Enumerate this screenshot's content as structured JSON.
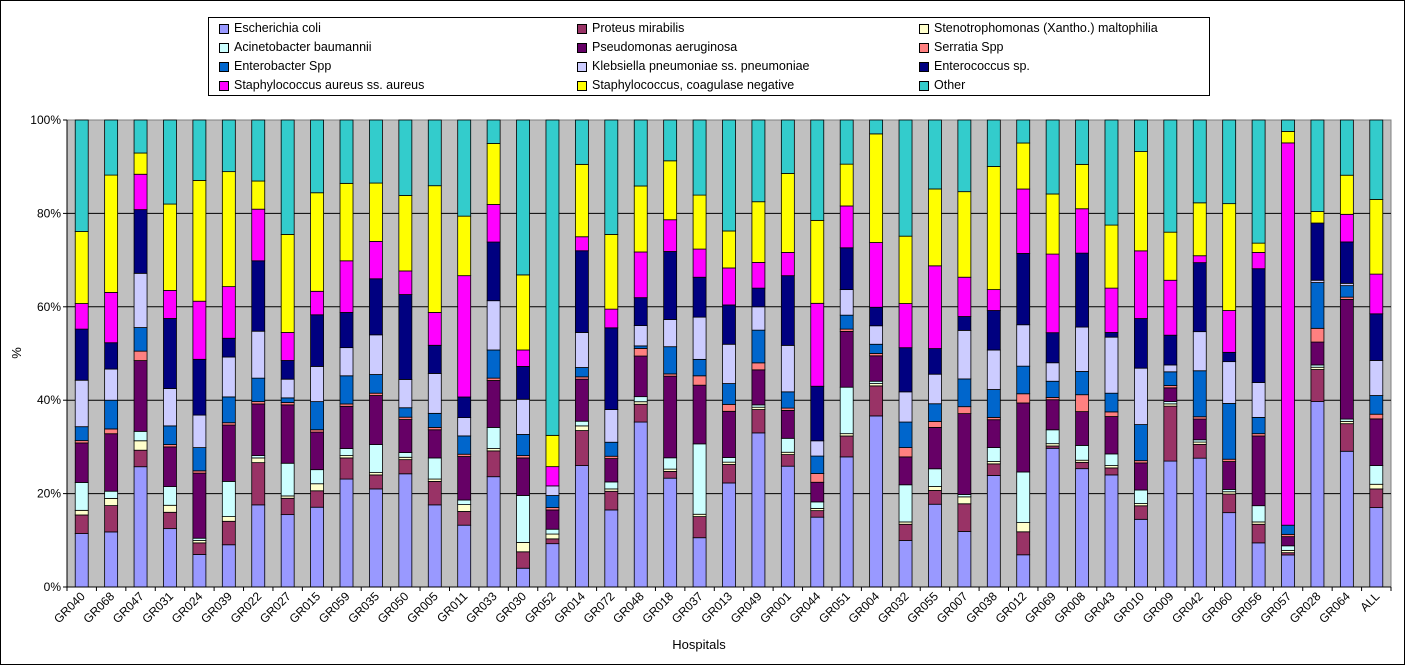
{
  "chart_data": {
    "type": "bar",
    "stacked": "percent",
    "xlabel": "Hospitals",
    "ylabel": "%",
    "ylim": [
      0,
      100
    ],
    "yticks": [
      "0%",
      "20%",
      "40%",
      "60%",
      "80%",
      "100%"
    ],
    "grid": true,
    "legend_position": "top",
    "categories": [
      "GR040",
      "GR068",
      "GR047",
      "GR031",
      "GR024",
      "GR039",
      "GR022",
      "GR027",
      "GR015",
      "GR059",
      "GR035",
      "GR050",
      "GR005",
      "GR011",
      "GR033",
      "GR030",
      "GR052",
      "GR014",
      "GR072",
      "GR048",
      "GR018",
      "GR037",
      "GR013",
      "GR049",
      "GR001",
      "GR044",
      "GR051",
      "GR004",
      "GR032",
      "GR055",
      "GR007",
      "GR038",
      "GR012",
      "GR069",
      "GR008",
      "GR043",
      "GR010",
      "GR009",
      "GR042",
      "GR060",
      "GR056",
      "GR057",
      "GR028",
      "GR064",
      "ALL"
    ],
    "series": [
      {
        "name": "Escherichia coli",
        "color": "#9999ff",
        "values": [
          11.5,
          11.5,
          25.5,
          12.5,
          7.0,
          9.0,
          17.5,
          15.5,
          17.0,
          23.0,
          21.0,
          24.0,
          17.5,
          13.5,
          23.5,
          4.0,
          9.0,
          26.0,
          16.5,
          32.5,
          24.0,
          10.5,
          22.5,
          33.0,
          26.0,
          16.0,
          28.0,
          37.0,
          10.0,
          21.0,
          12.0,
          24.0,
          7.0,
          30.0,
          28.0,
          24.0,
          15.0,
          27.5,
          28.0,
          16.0,
          9.5,
          7.0,
          40.5,
          29.5,
          17.0
        ]
      },
      {
        "name": "Proteus mirabilis",
        "color": "#993366",
        "values": [
          4.0,
          5.5,
          3.5,
          3.5,
          2.5,
          5.0,
          9.0,
          3.5,
          3.5,
          4.5,
          3.0,
          3.0,
          5.0,
          3.0,
          5.5,
          3.5,
          1.0,
          7.5,
          4.0,
          3.5,
          1.5,
          4.5,
          4.0,
          5.0,
          2.5,
          1.5,
          4.5,
          6.5,
          3.5,
          3.5,
          6.0,
          2.5,
          5.0,
          0.5,
          1.5,
          1.5,
          3.0,
          12.0,
          3.0,
          4.0,
          4.0,
          0.5,
          7.0,
          6.0,
          4.0
        ]
      },
      {
        "name": "Stenotrophomonas (Xantho.) maltophilia",
        "color": "#ffffcc",
        "values": [
          1.0,
          1.5,
          2.0,
          1.5,
          0.5,
          1.0,
          1.0,
          0.5,
          1.5,
          0.5,
          0.5,
          0.5,
          0.5,
          1.5,
          0.5,
          2.0,
          1.0,
          1.0,
          0.5,
          0.5,
          0.5,
          0.5,
          0.5,
          0.5,
          0.5,
          0.5,
          0.5,
          0.5,
          0.5,
          1.0,
          1.5,
          0.5,
          2.0,
          0.5,
          0.5,
          0.5,
          0.5,
          0.5,
          0.5,
          0.5,
          0.5,
          0.5,
          0.5,
          0.5,
          1.0
        ]
      },
      {
        "name": "Acinetobacter baumannii",
        "color": "#ccffff",
        "values": [
          6.0,
          1.5,
          2.0,
          4.0,
          0.5,
          7.5,
          0.5,
          7.0,
          3.0,
          1.5,
          6.0,
          1.0,
          4.5,
          1.0,
          4.5,
          10.0,
          1.0,
          1.0,
          1.5,
          1.0,
          2.5,
          15.0,
          1.0,
          0.5,
          3.0,
          1.5,
          10.0,
          0.5,
          8.0,
          4.5,
          0.5,
          3.0,
          11.0,
          3.0,
          3.5,
          2.5,
          3.0,
          0.5,
          0.5,
          0.5,
          3.5,
          1.0,
          0.5,
          0.5,
          4.0
        ]
      },
      {
        "name": "Pseudomonas aeruginosa",
        "color": "#660066",
        "values": [
          8.5,
          12.0,
          15.0,
          8.5,
          14.0,
          12.0,
          11.0,
          12.5,
          8.0,
          9.0,
          10.5,
          7.0,
          6.0,
          9.5,
          10.0,
          8.0,
          4.0,
          9.0,
          5.0,
          8.0,
          18.0,
          12.5,
          10.0,
          7.5,
          6.0,
          4.5,
          12.0,
          5.5,
          6.0,
          10.5,
          17.5,
          6.0,
          15.0,
          6.5,
          8.0,
          8.0,
          6.0,
          3.0,
          4.5,
          6.0,
          15.0,
          2.0,
          5.0,
          26.0,
          10.0
        ]
      },
      {
        "name": "Serratia Spp",
        "color": "#ff8080",
        "values": [
          0.5,
          1.0,
          2.0,
          0.5,
          0.5,
          0.5,
          0.5,
          0.5,
          0.5,
          0.5,
          0.5,
          0.5,
          0.5,
          0.5,
          0.5,
          0.5,
          0.5,
          0.5,
          0.5,
          1.5,
          0.5,
          2.0,
          1.5,
          1.5,
          0.5,
          2.0,
          0.5,
          0.5,
          2.0,
          1.5,
          1.5,
          0.5,
          2.0,
          0.5,
          4.0,
          1.0,
          0.5,
          0.5,
          0.5,
          0.5,
          0.5,
          0.5,
          3.0,
          0.5,
          1.0
        ]
      },
      {
        "name": "Enterobacter Spp",
        "color": "#0066cc",
        "values": [
          3.0,
          6.0,
          5.0,
          4.0,
          5.0,
          5.5,
          5.0,
          1.0,
          6.0,
          6.0,
          4.0,
          2.0,
          3.0,
          4.0,
          6.0,
          4.5,
          2.5,
          2.0,
          3.0,
          0.5,
          6.0,
          3.5,
          4.5,
          7.0,
          3.5,
          4.0,
          3.0,
          2.0,
          5.5,
          4.5,
          6.0,
          6.0,
          6.0,
          3.5,
          5.5,
          4.0,
          8.0,
          3.0,
          10.0,
          12.0,
          3.5,
          2.0,
          10.0,
          2.5,
          4.0
        ]
      },
      {
        "name": "Klebsiella pneumoniae ss. pneumoniae",
        "color": "#ccccff",
        "values": [
          10.0,
          6.5,
          11.5,
          8.0,
          7.0,
          8.5,
          10.0,
          4.0,
          7.5,
          6.0,
          8.5,
          6.0,
          8.5,
          4.0,
          10.5,
          7.5,
          2.0,
          7.5,
          7.0,
          4.0,
          6.0,
          9.0,
          8.5,
          5.0,
          10.0,
          3.5,
          5.5,
          4.0,
          6.5,
          7.5,
          10.5,
          8.5,
          9.0,
          4.0,
          10.5,
          12.0,
          12.5,
          1.5,
          8.5,
          9.0,
          7.5,
          0.0,
          0.5,
          0.5,
          7.5
        ]
      },
      {
        "name": "Enterococcus sp.",
        "color": "#000080",
        "values": [
          11.0,
          5.5,
          13.5,
          15.0,
          12.0,
          4.0,
          15.0,
          4.0,
          11.0,
          7.5,
          12.0,
          18.0,
          6.0,
          4.5,
          12.5,
          7.0,
          0.0,
          17.5,
          17.5,
          5.5,
          15.0,
          8.5,
          8.5,
          4.0,
          15.0,
          12.5,
          9.0,
          4.0,
          9.5,
          6.5,
          3.0,
          8.5,
          15.5,
          6.5,
          17.5,
          1.0,
          11.0,
          6.5,
          15.0,
          2.0,
          24.5,
          0.0,
          12.5,
          9.0,
          10.0
        ]
      },
      {
        "name": "Staphylococcus aureus ss. aureus",
        "color": "#ff00ff",
        "values": [
          5.5,
          10.5,
          7.5,
          6.0,
          12.5,
          11.0,
          11.0,
          6.0,
          5.0,
          11.0,
          8.0,
          5.0,
          7.0,
          26.5,
          8.0,
          3.5,
          4.0,
          3.0,
          4.0,
          9.0,
          7.0,
          6.0,
          8.0,
          5.5,
          5.0,
          19.0,
          9.0,
          14.0,
          9.5,
          21.0,
          8.5,
          4.5,
          14.0,
          17.0,
          10.5,
          9.5,
          15.0,
          12.0,
          1.5,
          9.0,
          3.5,
          83.5,
          0.0,
          6.0,
          8.5
        ]
      },
      {
        "name": "Staphylococcus, coagulase negative",
        "color": "#ffff00",
        "values": [
          15.5,
          24.5,
          4.5,
          18.5,
          26.0,
          24.5,
          6.0,
          21.0,
          21.0,
          16.5,
          12.5,
          16.0,
          27.0,
          13.0,
          13.0,
          16.0,
          6.5,
          15.5,
          16.0,
          13.0,
          13.0,
          11.5,
          8.0,
          13.0,
          17.0,
          19.0,
          9.0,
          23.5,
          14.5,
          19.5,
          18.5,
          26.5,
          10.0,
          13.0,
          10.5,
          13.5,
          22.0,
          10.5,
          11.5,
          23.0,
          2.0,
          2.5,
          2.5,
          8.5,
          16.0
        ]
      },
      {
        "name": "Other",
        "color": "#33cccc",
        "values": [
          24.0,
          11.5,
          7.0,
          18.0,
          13.0,
          11.0,
          13.0,
          24.5,
          15.5,
          13.5,
          13.5,
          16.0,
          14.0,
          21.0,
          5.0,
          33.0,
          65.5,
          9.5,
          24.5,
          13.0,
          9.0,
          16.0,
          24.0,
          17.5,
          11.5,
          23.0,
          9.5,
          3.0,
          25.0,
          17.5,
          15.5,
          10.0,
          5.0,
          16.0,
          10.5,
          22.5,
          7.0,
          24.5,
          18.0,
          18.0,
          26.5,
          2.5,
          20.0,
          12.0,
          17.0
        ]
      }
    ]
  }
}
